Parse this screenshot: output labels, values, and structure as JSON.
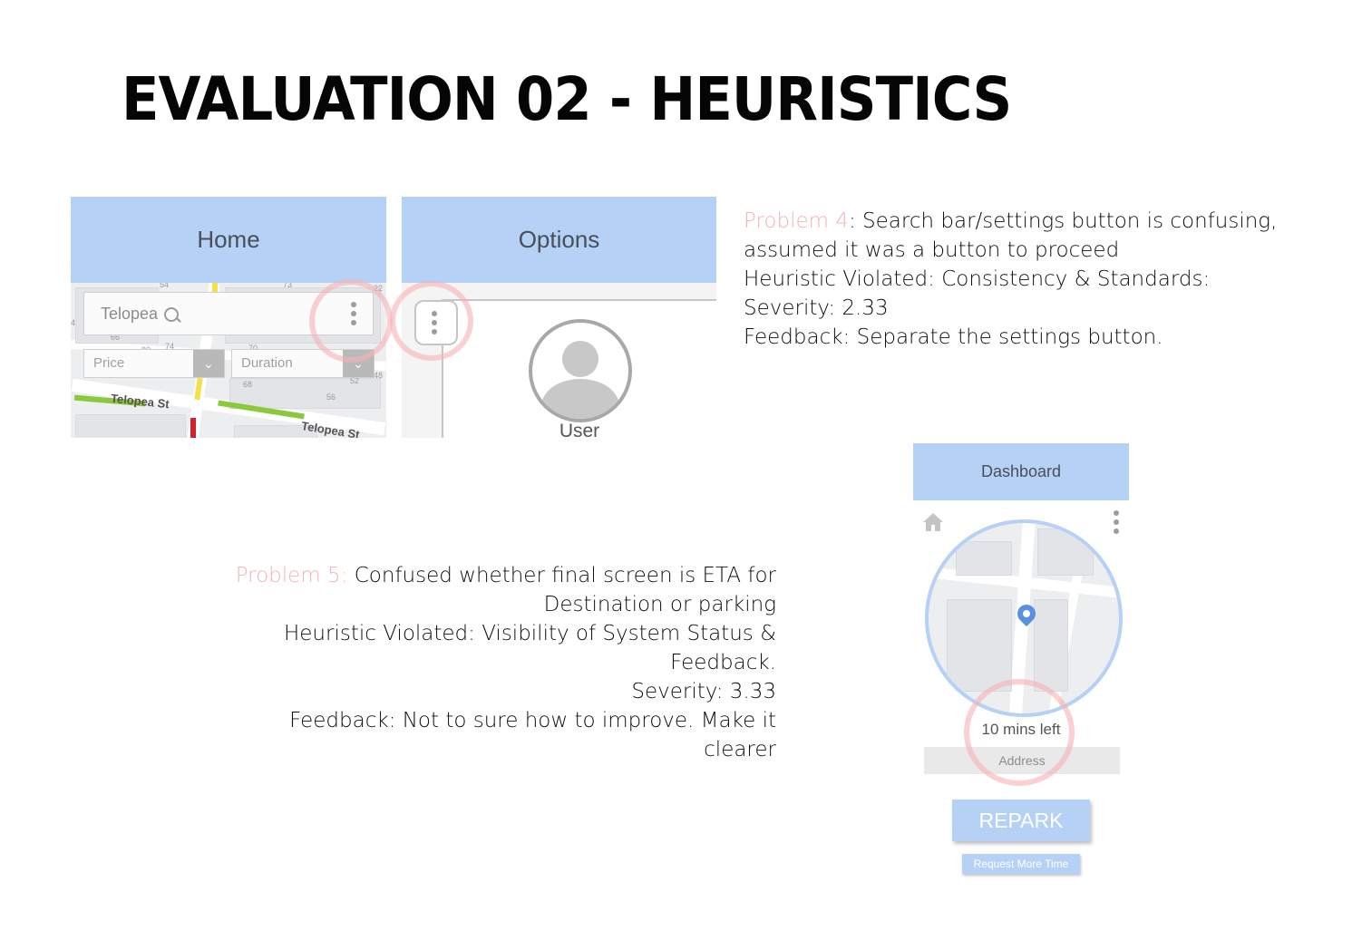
{
  "slide": {
    "title": "EVALUATION 02 - HEURISTICS"
  },
  "problem4": {
    "label": "Problem 4",
    "line1": ": Search bar/settings button is confusing,",
    "line2": "assumed it was a button to proceed",
    "heuristic": "Heuristic Violated: Consistency & Standards:",
    "severity": "Severity: 2.33",
    "feedback": "Feedback: Separate the settings button."
  },
  "problem5": {
    "label": "Problem 5:",
    "line1": " Confused whether final screen is ETA for",
    "line2": "Destination or parking",
    "heuristic1": "Heuristic Violated: Visibility of System Status &",
    "heuristic2": "Feedback.",
    "severity": "Severity: 3.33",
    "feedback1": "Feedback: Not to sure how to improve. Make it",
    "feedback2": "clearer"
  },
  "home_screen": {
    "header": "Home",
    "search_value": "Telopea",
    "price_label": "Price",
    "duration_label": "Duration",
    "street1": "Telopea St",
    "street2": "Telopea St",
    "map_numbers": [
      "54",
      "73",
      "74",
      "80",
      "70",
      "68",
      "56",
      "52",
      "48",
      "4",
      "66",
      "22"
    ]
  },
  "options_screen": {
    "header": "Options",
    "user_label": "User"
  },
  "dashboard_screen": {
    "header": "Dashboard",
    "mins_left": "10 mins left",
    "address": "Address",
    "repark": "REPARK",
    "request_more_time": "Request More Time"
  },
  "colors": {
    "header_blue": "#b6d1f6",
    "highlight_pink": "#f4b4b4",
    "road_green": "#8cc83c",
    "road_yellow": "#f5e04a",
    "road_red": "#d0222a"
  }
}
